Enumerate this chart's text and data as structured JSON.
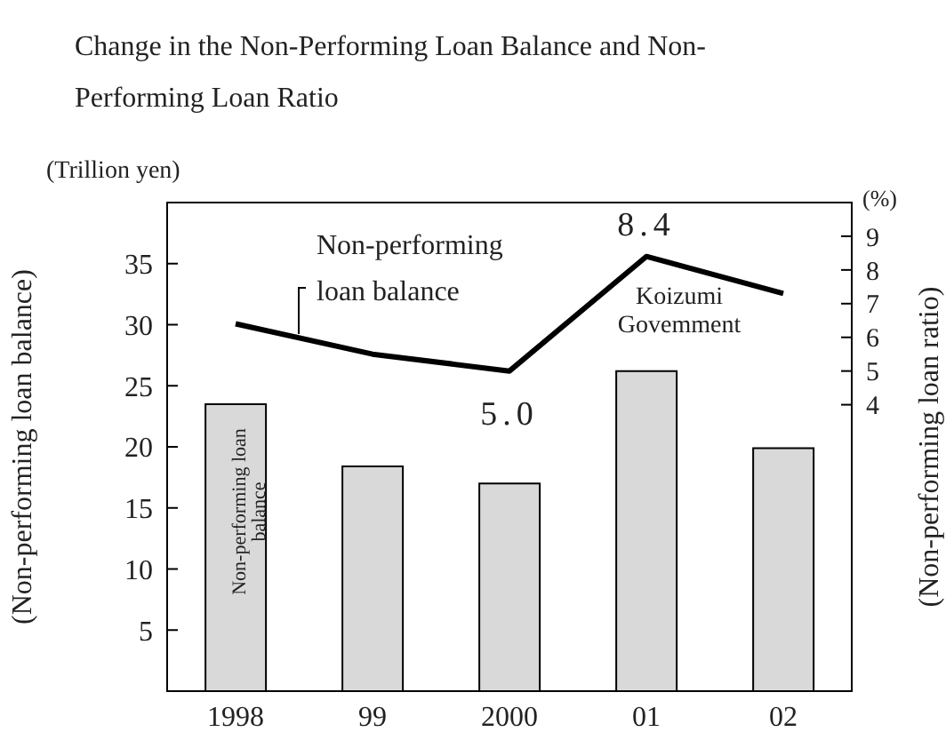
{
  "chart_data": {
    "type": "bar",
    "title": "Change in the Non-Performing Loan Balance and Non-Performing Loan Ratio",
    "ylabel": "(Non-performing loan balance)",
    "y2label": "(Non-performing loan ratio)",
    "annotations": [
      "(Trillion yen)",
      "(%)",
      "Koizumi Govemment"
    ],
    "categories": [
      "1998",
      "99",
      "2000",
      "01",
      "02"
    ],
    "series": [
      {
        "name": "Non-performing loan balance",
        "color": "#d9d9d9",
        "values": [
          23.5,
          18.4,
          17.0,
          26.2,
          19.9
        ]
      },
      {
        "name": "Non-performing loan balance",
        "type": "line",
        "axis": "y2",
        "color": "#000000",
        "values": [
          6.4,
          5.5,
          5.0,
          8.4,
          7.3
        ],
        "value_labels": [
          null,
          null,
          "5.0",
          "8.4",
          null
        ]
      }
    ],
    "ylim": [
      0,
      40
    ],
    "yticks": [
      5,
      10,
      15,
      20,
      25,
      30,
      35
    ],
    "y2lim": [
      -4.5,
      10
    ],
    "y2ticks": [
      4,
      5,
      6,
      7,
      8,
      9
    ],
    "marker": "none"
  }
}
